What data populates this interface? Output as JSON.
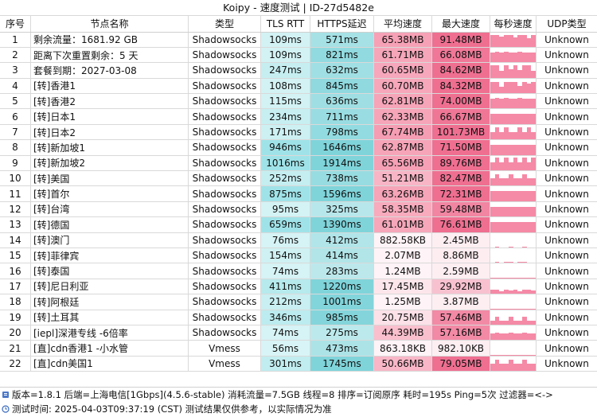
{
  "window": {
    "title": "Koipy - 速度测试 | ID-27d5482e"
  },
  "table": {
    "headers": [
      "序号",
      "节点名称",
      "类型",
      "TLS RTT",
      "HTTPS延迟",
      "平均速度",
      "最大速度",
      "每秒速度",
      "UDP类型"
    ],
    "colors": {
      "tls": "#9fe3e8",
      "https": "#7fd4da",
      "avg": "#f59ab0",
      "max": "#ef6f91",
      "spark": "#f58aa6"
    },
    "rows": [
      {
        "idx": "1",
        "name": "剩余流量：1681.92 GB",
        "type": "Shadowsocks",
        "tls": "109ms",
        "https": "571ms",
        "avg": "65.38MB",
        "max": "91.48MB",
        "udp": "Unknown",
        "spark": [
          0.85,
          0.85,
          0.75,
          0.85,
          0.85,
          0.7,
          0.85,
          0.85,
          0.6,
          0.85
        ]
      },
      {
        "idx": "2",
        "name": "距离下次重置剩余：5 天",
        "type": "Shadowsocks",
        "tls": "109ms",
        "https": "821ms",
        "avg": "61.71MB",
        "max": "66.08MB",
        "udp": "Unknown",
        "spark": [
          0.7,
          0.75,
          0.7,
          0.75,
          0.72,
          0.7,
          0.75,
          0.7,
          0.72,
          0.7
        ]
      },
      {
        "idx": "3",
        "name": "套餐到期：2027-03-08",
        "type": "Shadowsocks",
        "tls": "247ms",
        "https": "632ms",
        "avg": "60.65MB",
        "max": "84.62MB",
        "udp": "Unknown",
        "spark": [
          0.9,
          0.9,
          0.5,
          0.9,
          0.6,
          0.9,
          0.55,
          0.9,
          0.9,
          0.5
        ]
      },
      {
        "idx": "4",
        "name": "[转]香港1",
        "type": "Shadowsocks",
        "tls": "108ms",
        "https": "845ms",
        "avg": "60.70MB",
        "max": "84.32MB",
        "udp": "Unknown",
        "spark": [
          0.8,
          0.8,
          0.45,
          0.8,
          0.8,
          0.8,
          0.5,
          0.8,
          0.7,
          0.8
        ]
      },
      {
        "idx": "5",
        "name": "[转]香港2",
        "type": "Shadowsocks",
        "tls": "115ms",
        "https": "636ms",
        "avg": "62.81MB",
        "max": "74.00MB",
        "udp": "Unknown",
        "spark": [
          0.7,
          0.75,
          0.7,
          0.75,
          0.72,
          0.7,
          0.75,
          0.7,
          0.72,
          0.7
        ]
      },
      {
        "idx": "6",
        "name": "[转]日本1",
        "type": "Shadowsocks",
        "tls": "234ms",
        "https": "711ms",
        "avg": "62.33MB",
        "max": "66.67MB",
        "udp": "Unknown",
        "spark": [
          0.75,
          0.75,
          0.72,
          0.75,
          0.75,
          0.72,
          0.75,
          0.75,
          0.72,
          0.75
        ]
      },
      {
        "idx": "7",
        "name": "[转]日本2",
        "type": "Shadowsocks",
        "tls": "171ms",
        "https": "798ms",
        "avg": "67.74MB",
        "max": "101.73MB",
        "udp": "Unknown",
        "spark": [
          0.55,
          0.9,
          0.55,
          0.9,
          0.55,
          0.55,
          0.9,
          0.55,
          0.9,
          0.55
        ]
      },
      {
        "idx": "8",
        "name": "[转]新加坡1",
        "type": "Shadowsocks",
        "tls": "946ms",
        "https": "1646ms",
        "avg": "62.87MB",
        "max": "71.50MB",
        "udp": "Unknown",
        "spark": [
          0.7,
          0.75,
          0.7,
          0.75,
          0.72,
          0.7,
          0.75,
          0.7,
          0.72,
          0.7
        ]
      },
      {
        "idx": "9",
        "name": "[转]新加坡2",
        "type": "Shadowsocks",
        "tls": "1016ms",
        "https": "1914ms",
        "avg": "65.56MB",
        "max": "89.76MB",
        "udp": "Unknown",
        "spark": [
          0.6,
          0.95,
          0.6,
          0.95,
          0.6,
          0.95,
          0.6,
          0.95,
          0.6,
          0.95
        ]
      },
      {
        "idx": "10",
        "name": "[转]美国",
        "type": "Shadowsocks",
        "tls": "252ms",
        "https": "738ms",
        "avg": "51.21MB",
        "max": "82.47MB",
        "udp": "Unknown",
        "spark": [
          0.55,
          0.85,
          0.55,
          0.55,
          0.85,
          0.55,
          0.55,
          0.85,
          0.55,
          0.55
        ]
      },
      {
        "idx": "11",
        "name": "[转]首尔",
        "type": "Shadowsocks",
        "tls": "875ms",
        "https": "1596ms",
        "avg": "63.26MB",
        "max": "72.31MB",
        "udp": "Unknown",
        "spark": [
          0.75,
          0.75,
          0.72,
          0.75,
          0.75,
          0.72,
          0.75,
          0.75,
          0.72,
          0.75
        ]
      },
      {
        "idx": "12",
        "name": "[转]台湾",
        "type": "Shadowsocks",
        "tls": "95ms",
        "https": "325ms",
        "avg": "58.35MB",
        "max": "59.48MB",
        "udp": "Unknown",
        "spark": [
          0.72,
          0.72,
          0.72,
          0.72,
          0.72,
          0.72,
          0.72,
          0.72,
          0.72,
          0.72
        ]
      },
      {
        "idx": "13",
        "name": "[转]德国",
        "type": "Shadowsocks",
        "tls": "659ms",
        "https": "1390ms",
        "avg": "61.01MB",
        "max": "76.61MB",
        "udp": "Unknown",
        "spark": [
          0.75,
          0.75,
          0.7,
          0.75,
          0.75,
          0.7,
          0.75,
          0.75,
          0.7,
          0.75
        ]
      },
      {
        "idx": "14",
        "name": "[转]澳门",
        "type": "Shadowsocks",
        "tls": "76ms",
        "https": "412ms",
        "avg": "882.58KB",
        "max": "2.45MB",
        "udp": "Unknown",
        "spark": [
          0.02,
          0.05,
          0.02,
          0.02,
          0.05,
          0.02,
          0.02,
          0.05,
          0.02,
          0.02
        ]
      },
      {
        "idx": "15",
        "name": "[转]菲律宾",
        "type": "Shadowsocks",
        "tls": "154ms",
        "https": "414ms",
        "avg": "2.07MB",
        "max": "8.86MB",
        "udp": "Unknown",
        "spark": [
          0.05,
          0.1,
          0.05,
          0.08,
          0.1,
          0.05,
          0.08,
          0.1,
          0.05,
          0.05
        ]
      },
      {
        "idx": "16",
        "name": "[转]泰国",
        "type": "Shadowsocks",
        "tls": "74ms",
        "https": "283ms",
        "avg": "1.24MB",
        "max": "2.59MB",
        "udp": "Unknown",
        "spark": [
          0.02,
          0.04,
          0.02,
          0.03,
          0.04,
          0.02,
          0.03,
          0.04,
          0.02,
          0.02
        ]
      },
      {
        "idx": "17",
        "name": "[转]尼日利亚",
        "type": "Shadowsocks",
        "tls": "411ms",
        "https": "1220ms",
        "avg": "17.45MB",
        "max": "29.92MB",
        "udp": "Unknown",
        "spark": [
          0.3,
          0.3,
          0.2,
          0.3,
          0.25,
          0.3,
          0.2,
          0.3,
          0.3,
          0.25
        ]
      },
      {
        "idx": "18",
        "name": "[转]阿根廷",
        "type": "Shadowsocks",
        "tls": "212ms",
        "https": "1001ms",
        "avg": "1.25MB",
        "max": "3.87MB",
        "udp": "Unknown",
        "spark": [
          0.03,
          0.05,
          0.03,
          0.04,
          0.05,
          0.03,
          0.04,
          0.05,
          0.03,
          0.03
        ]
      },
      {
        "idx": "19",
        "name": "[转]土耳其",
        "type": "Shadowsocks",
        "tls": "346ms",
        "https": "985ms",
        "avg": "20.75MB",
        "max": "57.46MB",
        "udp": "Unknown",
        "spark": [
          0.3,
          0.55,
          0.3,
          0.3,
          0.55,
          0.3,
          0.3,
          0.55,
          0.3,
          0.3
        ]
      },
      {
        "idx": "20",
        "name": "[iepl]深港专线 -6倍率",
        "type": "Shadowsocks",
        "tls": "74ms",
        "https": "275ms",
        "avg": "44.39MB",
        "max": "57.16MB",
        "udp": "Unknown",
        "spark": [
          0.5,
          0.55,
          0.5,
          0.5,
          0.55,
          0.5,
          0.5,
          0.55,
          0.5,
          0.5
        ]
      },
      {
        "idx": "21",
        "name": "[直]cdn香港1 -小水管",
        "type": "Vmess",
        "tls": "56ms",
        "https": "473ms",
        "avg": "863.18KB",
        "max": "982.10KB",
        "udp": "Unknown",
        "spark": [
          0.02,
          0.02,
          0.02,
          0.02,
          0.02,
          0.02,
          0.02,
          0.02,
          0.02,
          0.02
        ]
      },
      {
        "idx": "22",
        "name": "[直]cdn美国1",
        "type": "Vmess",
        "tls": "301ms",
        "https": "1745ms",
        "avg": "50.66MB",
        "max": "79.05MB",
        "udp": "Unknown",
        "spark": [
          0.5,
          0.8,
          0.5,
          0.5,
          0.8,
          0.5,
          0.5,
          0.8,
          0.5,
          0.5
        ]
      }
    ]
  },
  "footer": {
    "line1": "版本=1.8.1  后端=上海电信[1Gbps](4.5.6-stable) 消耗流量=7.5GB  线程=8  排序=订阅原序  耗时=195s  Ping=5次  过滤器=<->",
    "line2": "测试时间: 2025-04-03T09:37:19 (CST)  测试结果仅供参考，以实际情况为准"
  }
}
